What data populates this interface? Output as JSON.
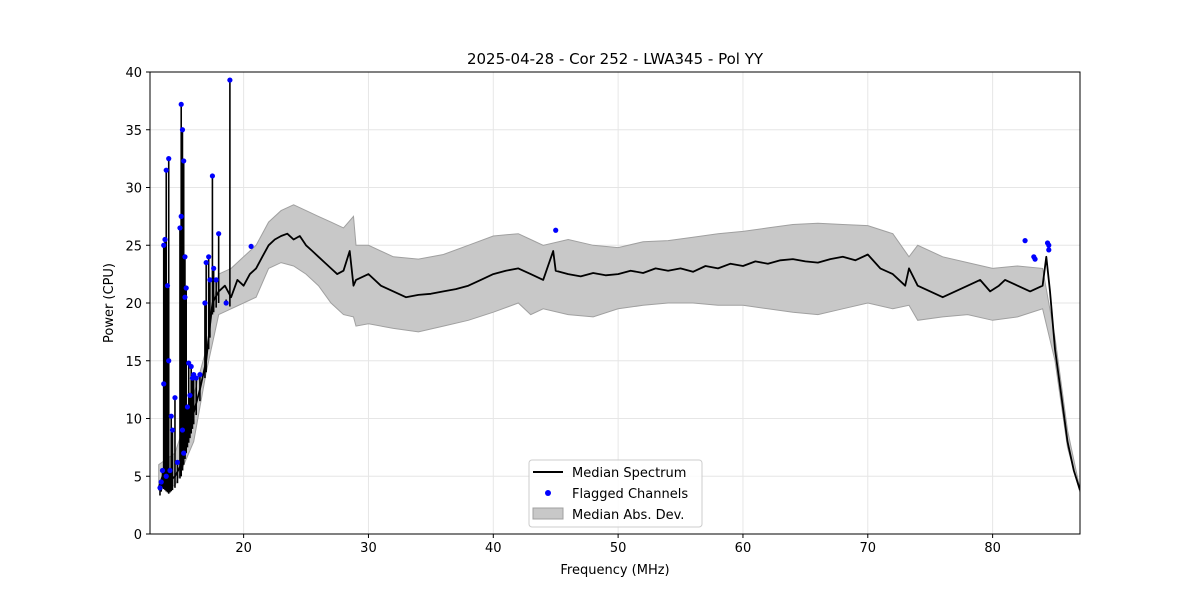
{
  "chart_data": {
    "type": "line",
    "title": "2025-04-28 - Cor 252 - LWA345 - Pol YY",
    "xlabel": "Frequency (MHz)",
    "ylabel": "Power (CPU)",
    "xlim": [
      12.5,
      87.0
    ],
    "ylim": [
      0,
      40
    ],
    "xticks": [
      20,
      30,
      40,
      50,
      60,
      70,
      80
    ],
    "yticks": [
      0,
      5,
      10,
      15,
      20,
      25,
      30,
      35,
      40
    ],
    "grid": true,
    "legend_position": "lower-center",
    "legend": [
      "Median Spectrum",
      "Flagged Channels",
      "Median Abs. Dev."
    ],
    "colors": {
      "line": "#000000",
      "flagged": "#0000ff",
      "band_fill": "#c8c8c8",
      "band_edge": "#a0a0a0",
      "grid": "#e6e6e6"
    },
    "series": [
      {
        "name": "Median Spectrum",
        "x": [
          13.2,
          13.5,
          14.0,
          14.5,
          15.0,
          15.5,
          16.0,
          16.5,
          17.0,
          17.5,
          18.0,
          18.5,
          19.0,
          19.5,
          20.0,
          20.5,
          21.0,
          21.5,
          22.0,
          22.5,
          23.0,
          23.5,
          24.0,
          24.5,
          25.0,
          25.5,
          26.0,
          26.5,
          27.0,
          27.5,
          28.0,
          28.5,
          28.8,
          29.0,
          30.0,
          31.0,
          32.0,
          33.0,
          34.0,
          35.0,
          36.0,
          37.0,
          38.0,
          39.0,
          40.0,
          41.0,
          42.0,
          43.0,
          44.0,
          44.8,
          45.0,
          46.0,
          47.0,
          48.0,
          49.0,
          50.0,
          51.0,
          52.0,
          53.0,
          54.0,
          55.0,
          56.0,
          57.0,
          58.0,
          59.0,
          60.0,
          61.0,
          62.0,
          63.0,
          64.0,
          65.0,
          66.0,
          67.0,
          68.0,
          69.0,
          70.0,
          71.0,
          72.0,
          73.0,
          73.3,
          74.0,
          75.0,
          76.0,
          77.0,
          78.0,
          79.0,
          79.8,
          80.5,
          81.0,
          82.0,
          83.0,
          84.0,
          84.3,
          84.6,
          85.0,
          85.5,
          86.0,
          86.5,
          87.0
        ],
        "y": [
          4.0,
          5.0,
          4.5,
          5.0,
          6.0,
          8.5,
          10.5,
          12.5,
          15.0,
          20.0,
          21.0,
          21.5,
          20.5,
          22.0,
          21.5,
          22.5,
          23.0,
          24.0,
          25.0,
          25.5,
          25.8,
          26.0,
          25.5,
          25.8,
          25.0,
          24.5,
          24.0,
          23.5,
          23.0,
          22.5,
          22.8,
          24.5,
          21.5,
          22.0,
          22.5,
          21.5,
          21.0,
          20.5,
          20.7,
          20.8,
          21.0,
          21.2,
          21.5,
          22.0,
          22.5,
          22.8,
          23.0,
          22.5,
          22.0,
          24.5,
          22.8,
          22.5,
          22.3,
          22.6,
          22.4,
          22.5,
          22.8,
          22.6,
          23.0,
          22.8,
          23.0,
          22.7,
          23.2,
          23.0,
          23.4,
          23.2,
          23.6,
          23.4,
          23.7,
          23.8,
          23.6,
          23.5,
          23.8,
          24.0,
          23.7,
          24.2,
          23.0,
          22.5,
          21.5,
          23.0,
          21.5,
          21.0,
          20.5,
          21.0,
          21.5,
          22.0,
          21.0,
          21.5,
          22.0,
          21.5,
          21.0,
          21.5,
          24.0,
          21.0,
          16.0,
          12.0,
          8.0,
          5.5,
          3.8
        ]
      },
      {
        "name": "Median Abs. Dev.",
        "x": [
          13.2,
          14.5,
          16.0,
          17.0,
          18.0,
          19.0,
          20.0,
          21.0,
          22.0,
          23.0,
          24.0,
          25.0,
          26.0,
          27.0,
          28.0,
          28.8,
          29.0,
          30.0,
          32.0,
          34.0,
          36.0,
          38.0,
          40.0,
          42.0,
          43.0,
          44.0,
          46.0,
          48.0,
          50.0,
          52.0,
          54.0,
          56.0,
          58.0,
          60.0,
          62.0,
          64.0,
          66.0,
          68.0,
          70.0,
          72.0,
          73.3,
          74.0,
          76.0,
          78.0,
          80.0,
          82.0,
          84.0,
          85.0,
          86.0,
          87.0
        ],
        "upper": [
          6.0,
          7.0,
          12.0,
          16.0,
          22.5,
          23.0,
          24.0,
          25.0,
          27.0,
          28.0,
          28.5,
          28.0,
          27.5,
          27.0,
          26.5,
          27.5,
          25.0,
          25.0,
          24.0,
          23.8,
          24.2,
          25.0,
          25.8,
          26.0,
          25.5,
          25.0,
          25.5,
          25.0,
          24.8,
          25.3,
          25.4,
          25.7,
          26.0,
          26.2,
          26.5,
          26.8,
          26.9,
          26.8,
          26.7,
          26.0,
          24.0,
          25.0,
          24.0,
          23.5,
          23.0,
          23.2,
          23.0,
          17.0,
          9.0,
          3.9
        ],
        "lower": [
          3.8,
          4.2,
          8.0,
          14.0,
          19.0,
          19.5,
          20.0,
          20.5,
          23.0,
          23.5,
          23.2,
          22.5,
          21.5,
          20.0,
          19.0,
          18.8,
          18.0,
          18.2,
          17.8,
          17.5,
          18.0,
          18.5,
          19.2,
          20.0,
          19.0,
          19.5,
          19.0,
          18.8,
          19.5,
          19.8,
          20.0,
          20.0,
          19.8,
          19.8,
          19.5,
          19.2,
          19.0,
          19.5,
          20.0,
          19.5,
          19.8,
          18.5,
          18.8,
          19.0,
          18.5,
          18.8,
          19.5,
          15.0,
          7.5,
          3.6
        ]
      },
      {
        "name": "Flagged Channels",
        "x": [
          13.3,
          13.4,
          13.5,
          13.6,
          13.6,
          13.7,
          13.8,
          13.8,
          13.9,
          14.0,
          14.0,
          14.1,
          14.2,
          14.3,
          14.5,
          14.7,
          14.9,
          15.0,
          15.0,
          15.1,
          15.1,
          15.2,
          15.2,
          15.3,
          15.3,
          15.4,
          15.5,
          15.6,
          15.7,
          15.8,
          15.9,
          16.0,
          16.2,
          16.5,
          16.9,
          17.0,
          17.2,
          17.3,
          17.5,
          17.6,
          17.8,
          18.0,
          18.6,
          18.9,
          20.6,
          45.0,
          82.6,
          83.3,
          83.4,
          84.4,
          84.5,
          84.5
        ],
        "y": [
          4.0,
          4.5,
          5.5,
          13.0,
          25.0,
          25.5,
          31.5,
          5.0,
          21.5,
          32.5,
          15.0,
          5.5,
          10.2,
          9.0,
          11.8,
          6.2,
          26.5,
          27.5,
          37.2,
          35.0,
          9.0,
          32.3,
          7.0,
          20.5,
          24.0,
          21.3,
          11.0,
          14.8,
          12.0,
          14.5,
          13.5,
          13.8,
          13.5,
          13.8,
          20.0,
          23.5,
          24.0,
          22.0,
          31.0,
          23.0,
          22.0,
          26.0,
          20.0,
          39.3,
          24.9,
          26.3,
          25.4,
          24.0,
          23.8,
          25.2,
          25.0,
          24.6
        ]
      }
    ]
  }
}
